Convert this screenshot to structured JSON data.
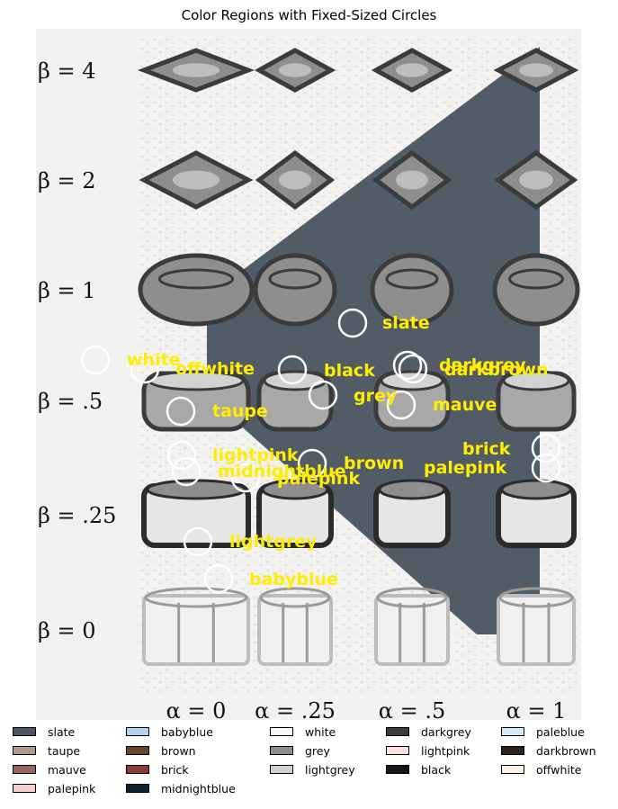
{
  "title": "Color Regions with Fixed-Sized Circles",
  "beta_labels": [
    "β = 4",
    "β = 2",
    "β = 1",
    "β = .5",
    "β = .25",
    "β = 0"
  ],
  "alpha_labels": [
    "α = 0",
    "α = .25",
    "α = .5",
    "α = 1"
  ],
  "colors": {
    "slate": "#4a5561",
    "taupe": "#b09a8d",
    "mauve": "#9a6467",
    "palepink": "#f6cdcd",
    "babyblue": "#b0d3ef",
    "brown": "#6a4629",
    "brick": "#8c3b3b",
    "midnightblue": "#0c2232",
    "white": "#fdfbf7",
    "grey": "#8e8e8e",
    "lightgrey": "#d2d2d2",
    "darkgrey": "#3b3b3b",
    "lightpink": "#fbdfe0",
    "black": "#151616",
    "paleblue": "#d5eaf6",
    "darkbrown": "#2f1f1c",
    "offwhite": "#fbf3e0"
  },
  "labels": [
    {
      "text": "slate"
    },
    {
      "text": "white"
    },
    {
      "text": "offwhite"
    },
    {
      "text": "black"
    },
    {
      "text": "darkgrey"
    },
    {
      "text": "darkbrown"
    },
    {
      "text": "grey"
    },
    {
      "text": "mauve"
    },
    {
      "text": "taupe"
    },
    {
      "text": "lightpink"
    },
    {
      "text": "midnightblue"
    },
    {
      "text": "brown"
    },
    {
      "text": "palepink"
    },
    {
      "text": "palepink"
    },
    {
      "text": "brick"
    },
    {
      "text": "lightgrey"
    },
    {
      "text": "babyblue"
    }
  ],
  "legend": [
    [
      "slate",
      "taupe",
      "mauve",
      "palepink"
    ],
    [
      "babyblue",
      "brown",
      "brick",
      "midnightblue"
    ],
    [
      "white",
      "grey",
      "lightgrey"
    ],
    [
      "darkgrey",
      "lightpink",
      "black"
    ],
    [
      "paleblue",
      "darkbrown",
      "offwhite"
    ]
  ]
}
